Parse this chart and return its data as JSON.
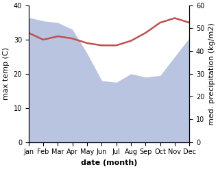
{
  "months": [
    "Jan",
    "Feb",
    "Mar",
    "Apr",
    "May",
    "Jun",
    "Jul",
    "Aug",
    "Sep",
    "Oct",
    "Nov",
    "Dec"
  ],
  "max_temp": [
    36.5,
    35.5,
    35.0,
    33.0,
    26.0,
    18.0,
    17.5,
    20.0,
    19.0,
    19.5,
    25.0,
    30.5
  ],
  "med_precip": [
    48.0,
    45.0,
    46.5,
    45.5,
    43.5,
    42.5,
    42.5,
    44.5,
    48.0,
    52.5,
    54.5,
    52.5
  ],
  "precip_color": "#c0504d",
  "temp_fill_color": "#b8c4e0",
  "ylabel_left": "max temp (C)",
  "ylabel_right": "med. precipitation (kg/m2)",
  "xlabel": "date (month)",
  "ylim_left": [
    0,
    40
  ],
  "ylim_right": [
    0,
    60
  ],
  "yticks_left": [
    0,
    10,
    20,
    30,
    40
  ],
  "yticks_right": [
    0,
    10,
    20,
    30,
    40,
    50,
    60
  ],
  "background_color": "#ffffff",
  "label_fontsize": 8,
  "tick_fontsize": 7
}
